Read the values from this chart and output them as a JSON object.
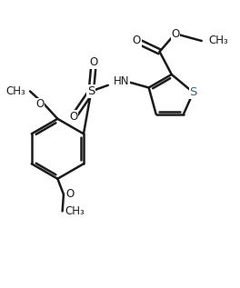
{
  "background_color": "#ffffff",
  "line_color": "#1a1a1a",
  "bond_width": 1.8,
  "font_size": 8.5,
  "figsize": [
    2.64,
    3.17
  ],
  "dpi": 100,
  "xlim": [
    0,
    10
  ],
  "ylim": [
    0,
    12
  ]
}
